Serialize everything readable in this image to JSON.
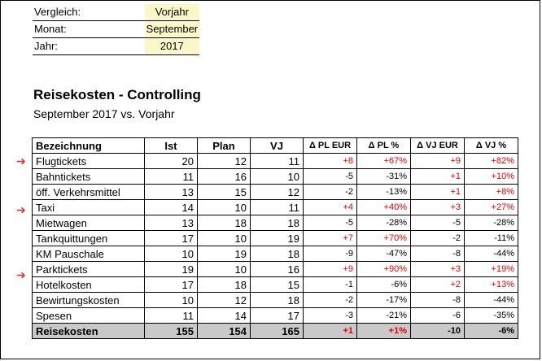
{
  "params": [
    {
      "label": "Vergleich:",
      "value": "Vorjahr"
    },
    {
      "label": "Monat:",
      "value": "September"
    },
    {
      "label": "Jahr:",
      "value": "2017"
    }
  ],
  "title": "Reisekosten - Controlling",
  "subtitle": "September 2017 vs. Vorjahr",
  "headers": [
    "Bezeichnung",
    "Ist",
    "Plan",
    "VJ",
    "Δ PL EUR",
    "Δ PL %",
    "Δ VJ EUR",
    "Δ VJ %"
  ],
  "rows": [
    {
      "name": "Flugtickets",
      "ist": "20",
      "plan": "12",
      "vj": "11",
      "dpl": "+8",
      "dplp": "+67%",
      "dvj": "+9",
      "dvjp": "+82%",
      "arrow": true
    },
    {
      "name": "Bahntickets",
      "ist": "11",
      "plan": "16",
      "vj": "10",
      "dpl": "-5",
      "dplp": "-31%",
      "dvj": "+1",
      "dvjp": "+10%",
      "arrow": false
    },
    {
      "name": "öff. Verkehrsmittel",
      "ist": "13",
      "plan": "15",
      "vj": "12",
      "dpl": "-2",
      "dplp": "-13%",
      "dvj": "+1",
      "dvjp": "+8%",
      "arrow": false
    },
    {
      "name": "Taxi",
      "ist": "14",
      "plan": "10",
      "vj": "11",
      "dpl": "+4",
      "dplp": "+40%",
      "dvj": "+3",
      "dvjp": "+27%",
      "arrow": true
    },
    {
      "name": "Mietwagen",
      "ist": "13",
      "plan": "18",
      "vj": "18",
      "dpl": "-5",
      "dplp": "-28%",
      "dvj": "-5",
      "dvjp": "-28%",
      "arrow": false
    },
    {
      "name": "Tankquittungen",
      "ist": "17",
      "plan": "10",
      "vj": "19",
      "dpl": "+7",
      "dplp": "+70%",
      "dvj": "-2",
      "dvjp": "-11%",
      "arrow": false
    },
    {
      "name": "KM Pauschale",
      "ist": "10",
      "plan": "19",
      "vj": "18",
      "dpl": "-9",
      "dplp": "-47%",
      "dvj": "-8",
      "dvjp": "-44%",
      "arrow": false
    },
    {
      "name": "Parktickets",
      "ist": "19",
      "plan": "10",
      "vj": "16",
      "dpl": "+9",
      "dplp": "+90%",
      "dvj": "+3",
      "dvjp": "+19%",
      "arrow": true
    },
    {
      "name": "Hotelkosten",
      "ist": "17",
      "plan": "18",
      "vj": "15",
      "dpl": "-1",
      "dplp": "-6%",
      "dvj": "+2",
      "dvjp": "+13%",
      "arrow": false
    },
    {
      "name": "Bewirtungskosten",
      "ist": "10",
      "plan": "12",
      "vj": "18",
      "dpl": "-2",
      "dplp": "-17%",
      "dvj": "-8",
      "dvjp": "-44%",
      "arrow": false
    },
    {
      "name": "Spesen",
      "ist": "11",
      "plan": "14",
      "vj": "17",
      "dpl": "-3",
      "dplp": "-21%",
      "dvj": "-6",
      "dvjp": "-35%",
      "arrow": false
    }
  ],
  "total": {
    "name": "Reisekosten",
    "ist": "155",
    "plan": "154",
    "vj": "165",
    "dpl": "+1",
    "dplp": "+1%",
    "dvj": "-10",
    "dvjp": "-6%"
  },
  "colors": {
    "negative_good": "#000000",
    "positive_bad": "#e00000",
    "input_bg": "#fbf7c6",
    "total_bg": "#c9c9c9"
  }
}
